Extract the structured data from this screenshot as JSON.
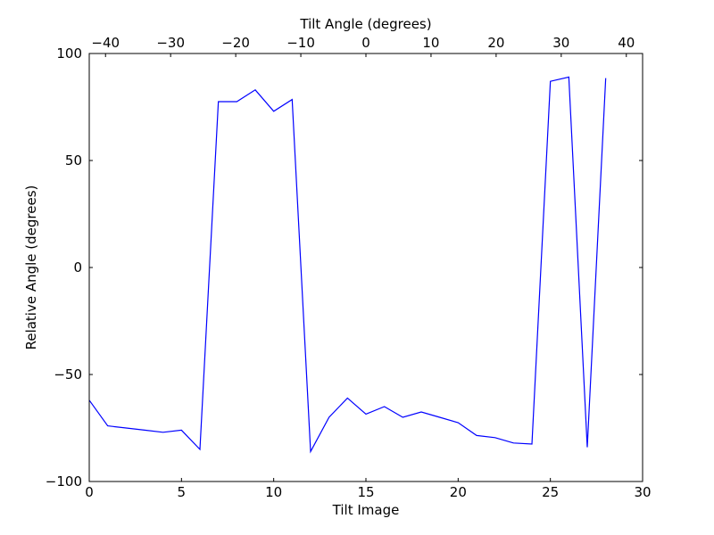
{
  "chart_data": {
    "type": "line",
    "xlabel": "Tilt Image",
    "ylabel": "Relative Angle (degrees)",
    "x2label": "Tilt Angle (degrees)",
    "xlim": [
      0,
      30
    ],
    "ylim": [
      -100,
      100
    ],
    "x2lim": [
      -42.5,
      42.5
    ],
    "grid": false,
    "x_ticks": [
      0,
      5,
      10,
      15,
      20,
      25,
      30
    ],
    "y_ticks": [
      -100,
      -50,
      0,
      50,
      100
    ],
    "x2_ticks": [
      -40,
      -30,
      -20,
      -10,
      0,
      10,
      20,
      30,
      40
    ],
    "x_tick_labels": [
      "0",
      "5",
      "10",
      "15",
      "20",
      "25",
      "30"
    ],
    "y_tick_labels": [
      "−100",
      "−50",
      "0",
      "50",
      "100"
    ],
    "x2_tick_labels": [
      "−40",
      "−30",
      "−20",
      "−10",
      "0",
      "10",
      "20",
      "30",
      "40"
    ],
    "series": [
      {
        "color": "#0000ff",
        "x": [
          0,
          1,
          2,
          3,
          4,
          5,
          6,
          7,
          8,
          9,
          10,
          11,
          12,
          13,
          14,
          15,
          16,
          17,
          18,
          19,
          20,
          21,
          22,
          23,
          24,
          25,
          26,
          27,
          28
        ],
        "y": [
          -62,
          -74,
          -75,
          -76,
          -77,
          -76,
          -85,
          77.5,
          77.5,
          83,
          73,
          78.5,
          -86,
          -70,
          -61,
          -68.5,
          -65,
          -70,
          -67.5,
          -70,
          -72.5,
          -78.5,
          -79.5,
          -82,
          -82.5,
          87,
          89,
          -84,
          88.5
        ]
      }
    ]
  }
}
